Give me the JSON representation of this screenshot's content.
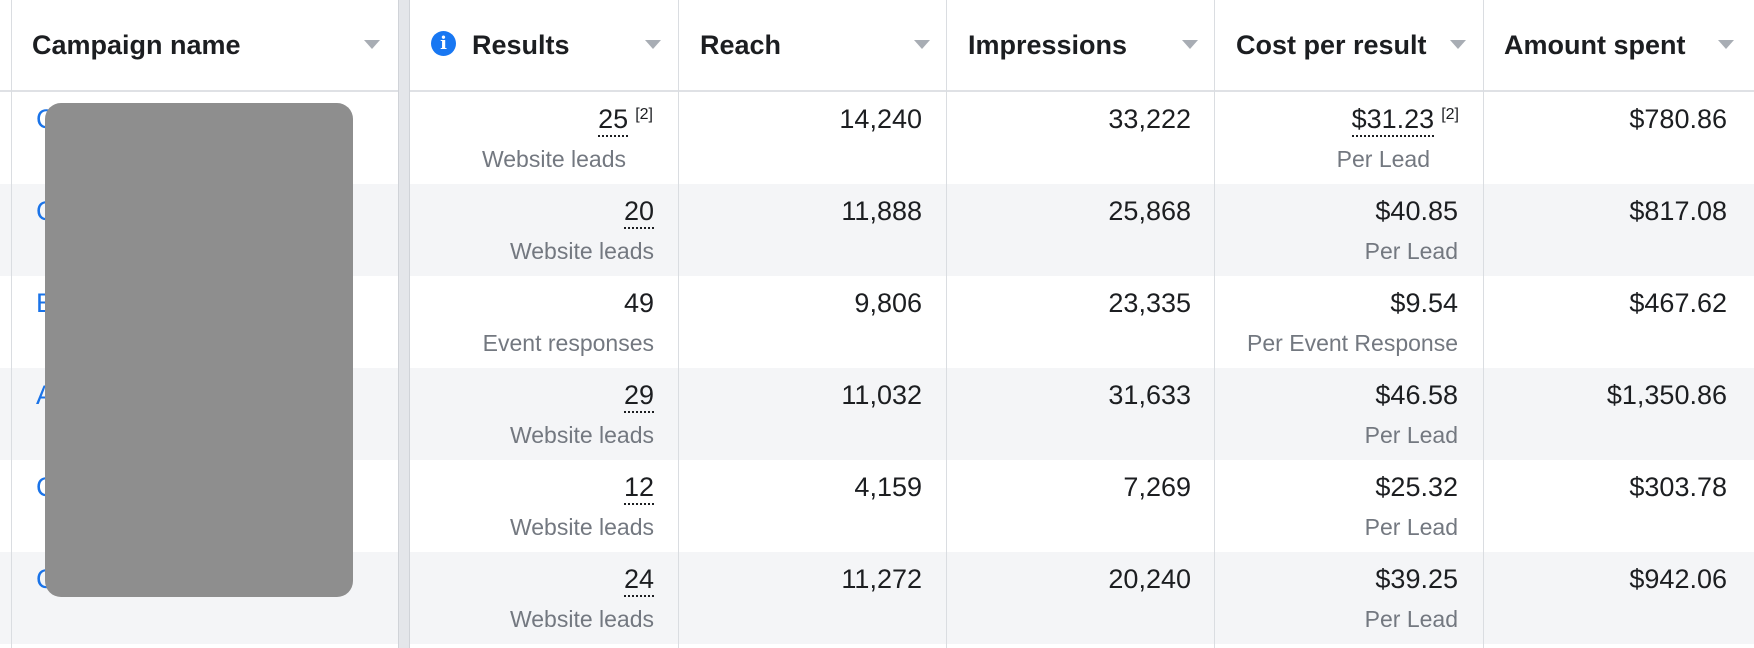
{
  "columns": {
    "campaign_name": "Campaign name",
    "results": "Results",
    "reach": "Reach",
    "impressions": "Impressions",
    "cost_per_result": "Cost per result",
    "amount_spent": "Amount spent"
  },
  "rows": [
    {
      "campaign_initial": "C",
      "results": "25",
      "results_note": "[2]",
      "results_type": "Website leads",
      "reach": "14,240",
      "impressions": "33,222",
      "cost": "$31.23",
      "cost_note": "[2]",
      "cost_type": "Per Lead",
      "spent": "$780.86"
    },
    {
      "campaign_initial": "C",
      "results": "20",
      "results_note": "",
      "results_type": "Website leads",
      "reach": "11,888",
      "impressions": "25,868",
      "cost": "$40.85",
      "cost_note": "",
      "cost_type": "Per Lead",
      "spent": "$817.08"
    },
    {
      "campaign_initial": "B",
      "results": "49",
      "results_note": "",
      "results_type": "Event responses",
      "reach": "9,806",
      "impressions": "23,335",
      "cost": "$9.54",
      "cost_note": "",
      "cost_type": "Per Event Response",
      "spent": "$467.62"
    },
    {
      "campaign_initial": "A",
      "results": "29",
      "results_note": "",
      "results_type": "Website leads",
      "reach": "11,032",
      "impressions": "31,633",
      "cost": "$46.58",
      "cost_note": "",
      "cost_type": "Per Lead",
      "spent": "$1,350.86"
    },
    {
      "campaign_initial": "C",
      "results": "12",
      "results_note": "",
      "results_type": "Website leads",
      "reach": "4,159",
      "impressions": "7,269",
      "cost": "$25.32",
      "cost_note": "",
      "cost_type": "Per Lead",
      "spent": "$303.78"
    },
    {
      "campaign_initial": "C",
      "results": "24",
      "results_note": "",
      "results_type": "Website leads",
      "reach": "11,272",
      "impressions": "20,240",
      "cost": "$39.25",
      "cost_note": "",
      "cost_type": "Per Lead",
      "spent": "$942.06"
    }
  ],
  "icons": {
    "info": "info-icon",
    "sort": "caret-down-icon"
  },
  "colors": {
    "link": "#1a73e8",
    "info": "#1877f2",
    "alt_row": "#f4f5f7",
    "redaction": "#8e8e8e"
  }
}
